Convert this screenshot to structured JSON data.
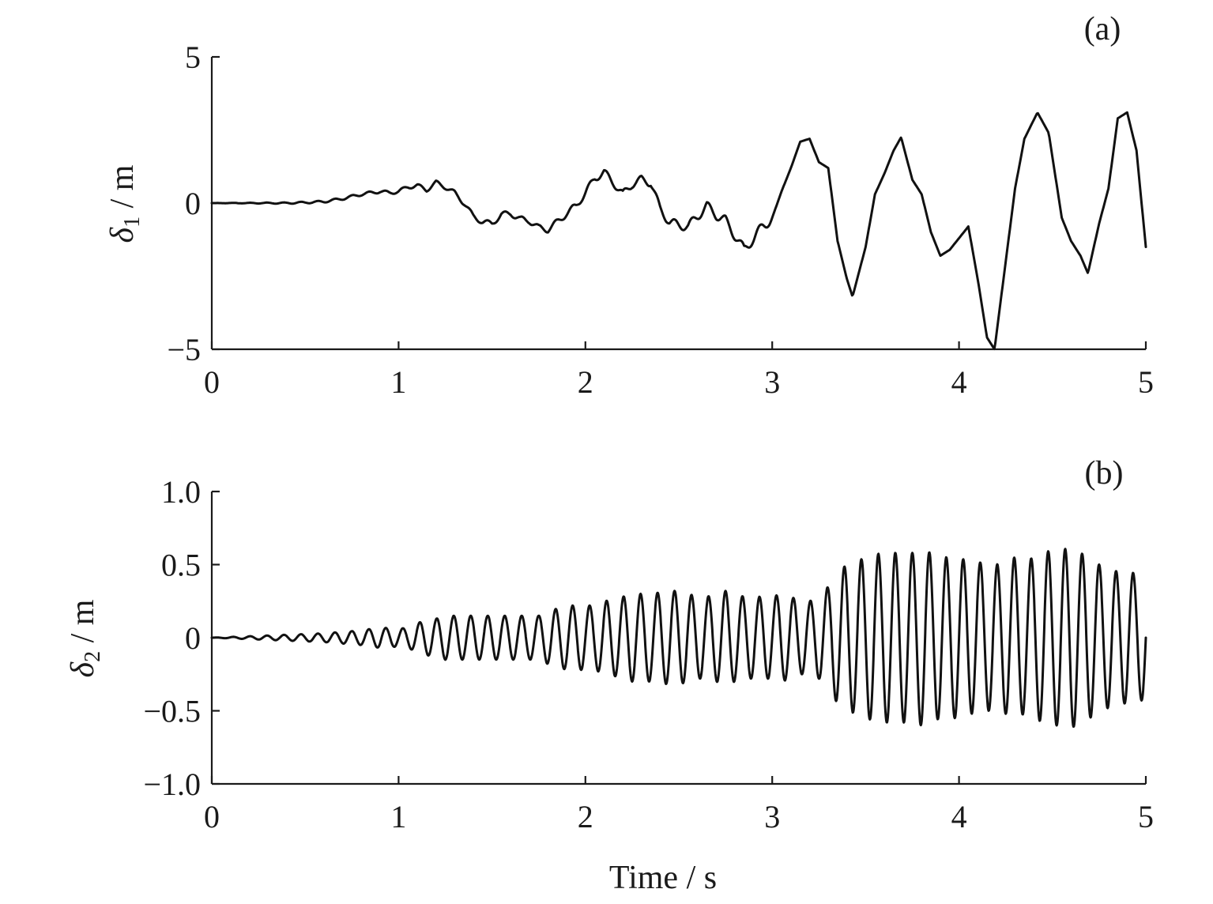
{
  "chart_data": [
    {
      "type": "line",
      "panel_label": "(a)",
      "ylabel": {
        "symbol": "δ",
        "subscript": "1",
        "unit": " / m"
      },
      "xlabel": "",
      "xlim": [
        0,
        5
      ],
      "ylim": [
        -5,
        5
      ],
      "xticks": [
        0,
        1,
        2,
        3,
        4,
        5
      ],
      "xtick_labels": [
        "0",
        "1",
        "2",
        "3",
        "4",
        "5"
      ],
      "yticks": [
        -5,
        0,
        5
      ],
      "ytick_labels": [
        "−5",
        "0",
        "5"
      ],
      "series": [
        {
          "x": [
            0,
            0.1,
            0.2,
            0.3,
            0.4,
            0.5,
            0.6,
            0.7,
            0.8,
            0.9,
            0.95,
            1.0,
            1.05,
            1.1,
            1.15,
            1.2,
            1.25,
            1.3,
            1.35,
            1.4,
            1.45,
            1.5,
            1.55,
            1.6,
            1.65,
            1.7,
            1.75,
            1.8,
            1.85,
            1.9,
            1.95,
            2.0,
            2.05,
            2.1,
            2.15,
            2.2,
            2.25,
            2.3,
            2.35,
            2.4,
            2.45,
            2.5,
            2.55,
            2.6,
            2.65,
            2.7,
            2.75,
            2.8,
            2.85,
            2.9,
            2.95,
            3.0,
            3.05,
            3.1,
            3.15,
            3.2,
            3.25,
            3.3,
            3.35,
            3.4,
            3.43,
            3.5,
            3.55,
            3.6,
            3.65,
            3.69,
            3.75,
            3.8,
            3.85,
            3.9,
            3.95,
            4.0,
            4.05,
            4.1,
            4.15,
            4.19,
            4.25,
            4.3,
            4.35,
            4.42,
            4.48,
            4.55,
            4.6,
            4.65,
            4.69,
            4.75,
            4.8,
            4.85,
            4.9,
            4.95,
            5.0
          ],
          "y": [
            0,
            0,
            0,
            0,
            0,
            0.02,
            0.05,
            0.15,
            0.3,
            0.4,
            0.35,
            0.4,
            0.55,
            0.6,
            0.45,
            0.7,
            0.55,
            0.35,
            0.0,
            -0.45,
            -0.65,
            -0.7,
            -0.4,
            -0.35,
            -0.55,
            -0.6,
            -0.85,
            -0.9,
            -0.65,
            -0.35,
            -0.1,
            0.35,
            0.85,
            1.05,
            0.7,
            0.3,
            0.65,
            0.8,
            0.7,
            -0.2,
            -0.65,
            -0.75,
            -0.8,
            -0.45,
            -0.1,
            -0.4,
            -0.6,
            -1.1,
            -1.6,
            -1.2,
            -0.8,
            -0.5,
            0.4,
            1.2,
            2.1,
            2.2,
            1.4,
            1.2,
            -1.3,
            -2.6,
            -3.2,
            -1.5,
            0.3,
            1.0,
            1.8,
            2.25,
            0.8,
            0.3,
            -1.0,
            -1.8,
            -1.6,
            -1.2,
            -0.8,
            -2.6,
            -4.6,
            -5.0,
            -2.0,
            0.5,
            2.2,
            3.1,
            2.4,
            -0.5,
            -1.3,
            -1.8,
            -2.4,
            -0.7,
            0.5,
            2.9,
            3.1,
            1.8,
            -1.5
          ]
        }
      ]
    },
    {
      "type": "line",
      "panel_label": "(b)",
      "ylabel": {
        "symbol": "δ",
        "subscript": "2",
        "unit": " / m"
      },
      "xlabel": "Time / s",
      "xlim": [
        0,
        5
      ],
      "ylim": [
        -1.0,
        1.0
      ],
      "xticks": [
        0,
        1,
        2,
        3,
        4,
        5
      ],
      "xtick_labels": [
        "0",
        "1",
        "2",
        "3",
        "4",
        "5"
      ],
      "yticks": [
        -1.0,
        -0.5,
        0,
        0.5,
        1.0
      ],
      "ytick_labels": [
        "−1.0",
        "−0.5",
        "0",
        "0.5",
        "1.0"
      ],
      "series": [
        {
          "x": [
            0,
            0.1,
            0.2,
            0.3,
            0.4,
            0.5,
            0.6,
            0.7,
            0.75,
            0.8,
            0.85,
            0.9,
            0.95,
            1.0,
            1.05,
            1.1,
            1.15,
            1.2,
            1.25,
            1.3,
            1.35,
            1.4,
            1.45,
            1.5,
            1.55,
            1.6,
            1.65,
            1.7,
            1.75,
            1.8,
            1.85,
            1.9,
            1.95,
            2.0,
            2.05,
            2.1,
            2.15,
            2.2,
            2.25,
            2.3,
            2.35,
            2.4,
            2.45,
            2.5,
            2.55,
            2.6,
            2.65,
            2.7,
            2.75,
            2.8,
            2.85,
            2.9,
            2.95,
            3.0,
            3.05,
            3.1,
            3.15,
            3.2,
            3.25,
            3.3,
            3.35,
            3.4,
            3.45,
            3.5,
            3.55,
            3.6,
            3.65,
            3.7,
            3.75,
            3.8,
            3.85,
            3.9,
            3.95,
            4.0,
            4.05,
            4.1,
            4.15,
            4.2,
            4.25,
            4.3,
            4.35,
            4.4,
            4.45,
            4.5,
            4.55,
            4.6,
            4.65,
            4.7,
            4.75,
            4.8,
            4.85,
            4.9,
            4.95,
            5.0
          ],
          "amplitude": [
            0,
            0.005,
            0.01,
            0.015,
            0.02,
            0.025,
            0.03,
            0.04,
            0.045,
            0.05,
            0.06,
            0.07,
            0.065,
            0.06,
            0.07,
            0.1,
            0.12,
            0.13,
            0.15,
            0.15,
            0.15,
            0.15,
            0.15,
            0.15,
            0.15,
            0.15,
            0.15,
            0.15,
            0.15,
            0.18,
            0.2,
            0.22,
            0.22,
            0.22,
            0.22,
            0.25,
            0.26,
            0.28,
            0.3,
            0.3,
            0.3,
            0.31,
            0.32,
            0.32,
            0.3,
            0.28,
            0.28,
            0.3,
            0.32,
            0.3,
            0.28,
            0.28,
            0.28,
            0.28,
            0.3,
            0.28,
            0.25,
            0.25,
            0.28,
            0.35,
            0.45,
            0.5,
            0.52,
            0.55,
            0.57,
            0.58,
            0.58,
            0.58,
            0.58,
            0.6,
            0.58,
            0.55,
            0.55,
            0.55,
            0.52,
            0.52,
            0.5,
            0.5,
            0.52,
            0.55,
            0.52,
            0.55,
            0.58,
            0.6,
            0.6,
            0.62,
            0.58,
            0.55,
            0.5,
            0.48,
            0.45,
            0.45,
            0.44,
            0.42
          ],
          "frequency_hz": 11
        }
      ]
    }
  ]
}
